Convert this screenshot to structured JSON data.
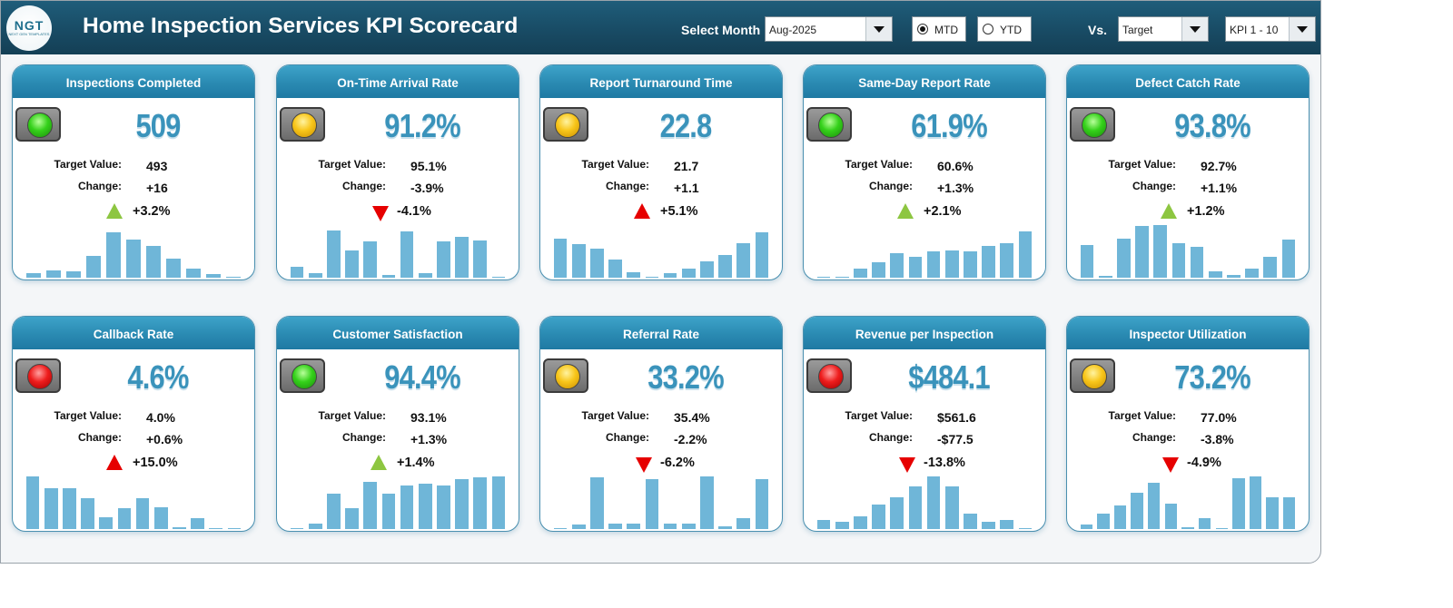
{
  "header": {
    "logo_text": "NGT",
    "logo_subtext": "NEXT GEN TEMPLATES",
    "title": "Home Inspection Services KPI Scorecard",
    "select_month_label": "Select Month",
    "month_value": "Aug-2025",
    "mtd_label": "MTD",
    "ytd_label": "YTD",
    "mode_selected": "MTD",
    "vs_label": "Vs.",
    "vs_value": "Target",
    "kpi_range_value": "KPI 1 - 10"
  },
  "labels": {
    "target": "Target Value:",
    "change": "Change:"
  },
  "colors": {
    "header": "#184a63",
    "card_head": "#2a8ab2",
    "value": "#3a93bb",
    "bar": "#6fb6d8",
    "up": "#8dc641",
    "down": "#e60000"
  },
  "cards": [
    {
      "title": "Inspections Completed",
      "value": "509",
      "status": "green",
      "target": "493",
      "change": "+16",
      "direction": "up",
      "arrow_color": "green",
      "pct": "+3.2%",
      "trend": [
        5,
        8,
        7,
        23,
        48,
        41,
        34,
        20,
        10,
        4,
        1
      ]
    },
    {
      "title": "On-Time Arrival Rate",
      "value": "91.2%",
      "status": "yellow",
      "target": "95.1%",
      "change": "-3.9%",
      "direction": "down",
      "arrow_color": "red",
      "pct": "-4.1%",
      "trend": [
        12,
        5,
        50,
        29,
        39,
        3,
        49,
        5,
        39,
        43,
        40,
        1
      ]
    },
    {
      "title": "Report Turnaround Time",
      "value": "22.8",
      "status": "yellow",
      "target": "21.7",
      "change": "+1.1",
      "direction": "up",
      "arrow_color": "red",
      "pct": "+5.1%",
      "trend": [
        42,
        36,
        31,
        19,
        6,
        1,
        5,
        10,
        17,
        24,
        37,
        48
      ]
    },
    {
      "title": "Same-Day Report Rate",
      "value": "61.9%",
      "status": "green",
      "target": "60.6%",
      "change": "+1.3%",
      "direction": "up",
      "arrow_color": "green",
      "pct": "+2.1%",
      "trend": [
        1,
        1,
        10,
        16,
        26,
        22,
        28,
        29,
        28,
        34,
        37,
        49
      ]
    },
    {
      "title": "Defect Catch Rate",
      "value": "93.8%",
      "status": "green",
      "target": "92.7%",
      "change": "+1.1%",
      "direction": "up",
      "arrow_color": "green",
      "pct": "+1.2%",
      "trend": [
        35,
        2,
        42,
        55,
        56,
        37,
        33,
        7,
        3,
        10,
        22,
        41
      ]
    },
    {
      "title": "Callback Rate",
      "value": "4.6%",
      "status": "red",
      "target": "4.0%",
      "change": "+0.6%",
      "direction": "up",
      "arrow_color": "red",
      "pct": "+15.0%",
      "trend": [
        56,
        43,
        43,
        33,
        13,
        22,
        33,
        23,
        2,
        12,
        1,
        1
      ]
    },
    {
      "title": "Customer Satisfaction",
      "value": "94.4%",
      "status": "green",
      "target": "93.1%",
      "change": "+1.3%",
      "direction": "up",
      "arrow_color": "green",
      "pct": "+1.4%",
      "trend": [
        1,
        6,
        38,
        22,
        50,
        38,
        46,
        48,
        46,
        53,
        55,
        56
      ]
    },
    {
      "title": "Referral Rate",
      "value": "33.2%",
      "status": "yellow",
      "target": "35.4%",
      "change": "-2.2%",
      "direction": "down",
      "arrow_color": "red",
      "pct": "-6.2%",
      "trend": [
        1,
        5,
        55,
        6,
        6,
        53,
        6,
        6,
        56,
        3,
        12,
        53
      ]
    },
    {
      "title": "Revenue per Inspection",
      "value": "$484.1",
      "status": "red",
      "target": "$561.6",
      "change": "-$77.5",
      "direction": "down",
      "arrow_color": "red",
      "pct": "-13.8%",
      "trend": [
        10,
        8,
        14,
        26,
        34,
        45,
        56,
        45,
        16,
        8,
        10,
        1
      ]
    },
    {
      "title": "Inspector Utilization",
      "value": "73.2%",
      "status": "yellow",
      "target": "77.0%",
      "change": "-3.8%",
      "direction": "down",
      "arrow_color": "red",
      "pct": "-4.9%",
      "trend": [
        5,
        16,
        25,
        39,
        49,
        27,
        2,
        12,
        1,
        54,
        56,
        34,
        34
      ]
    }
  ]
}
